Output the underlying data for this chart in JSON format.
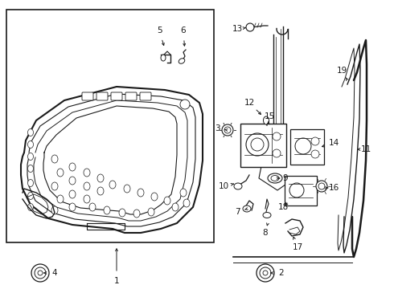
{
  "bg_color": "#ffffff",
  "line_color": "#1a1a1a",
  "fig_width": 4.9,
  "fig_height": 3.6,
  "dpi": 100,
  "label_fontsize": 7.5
}
